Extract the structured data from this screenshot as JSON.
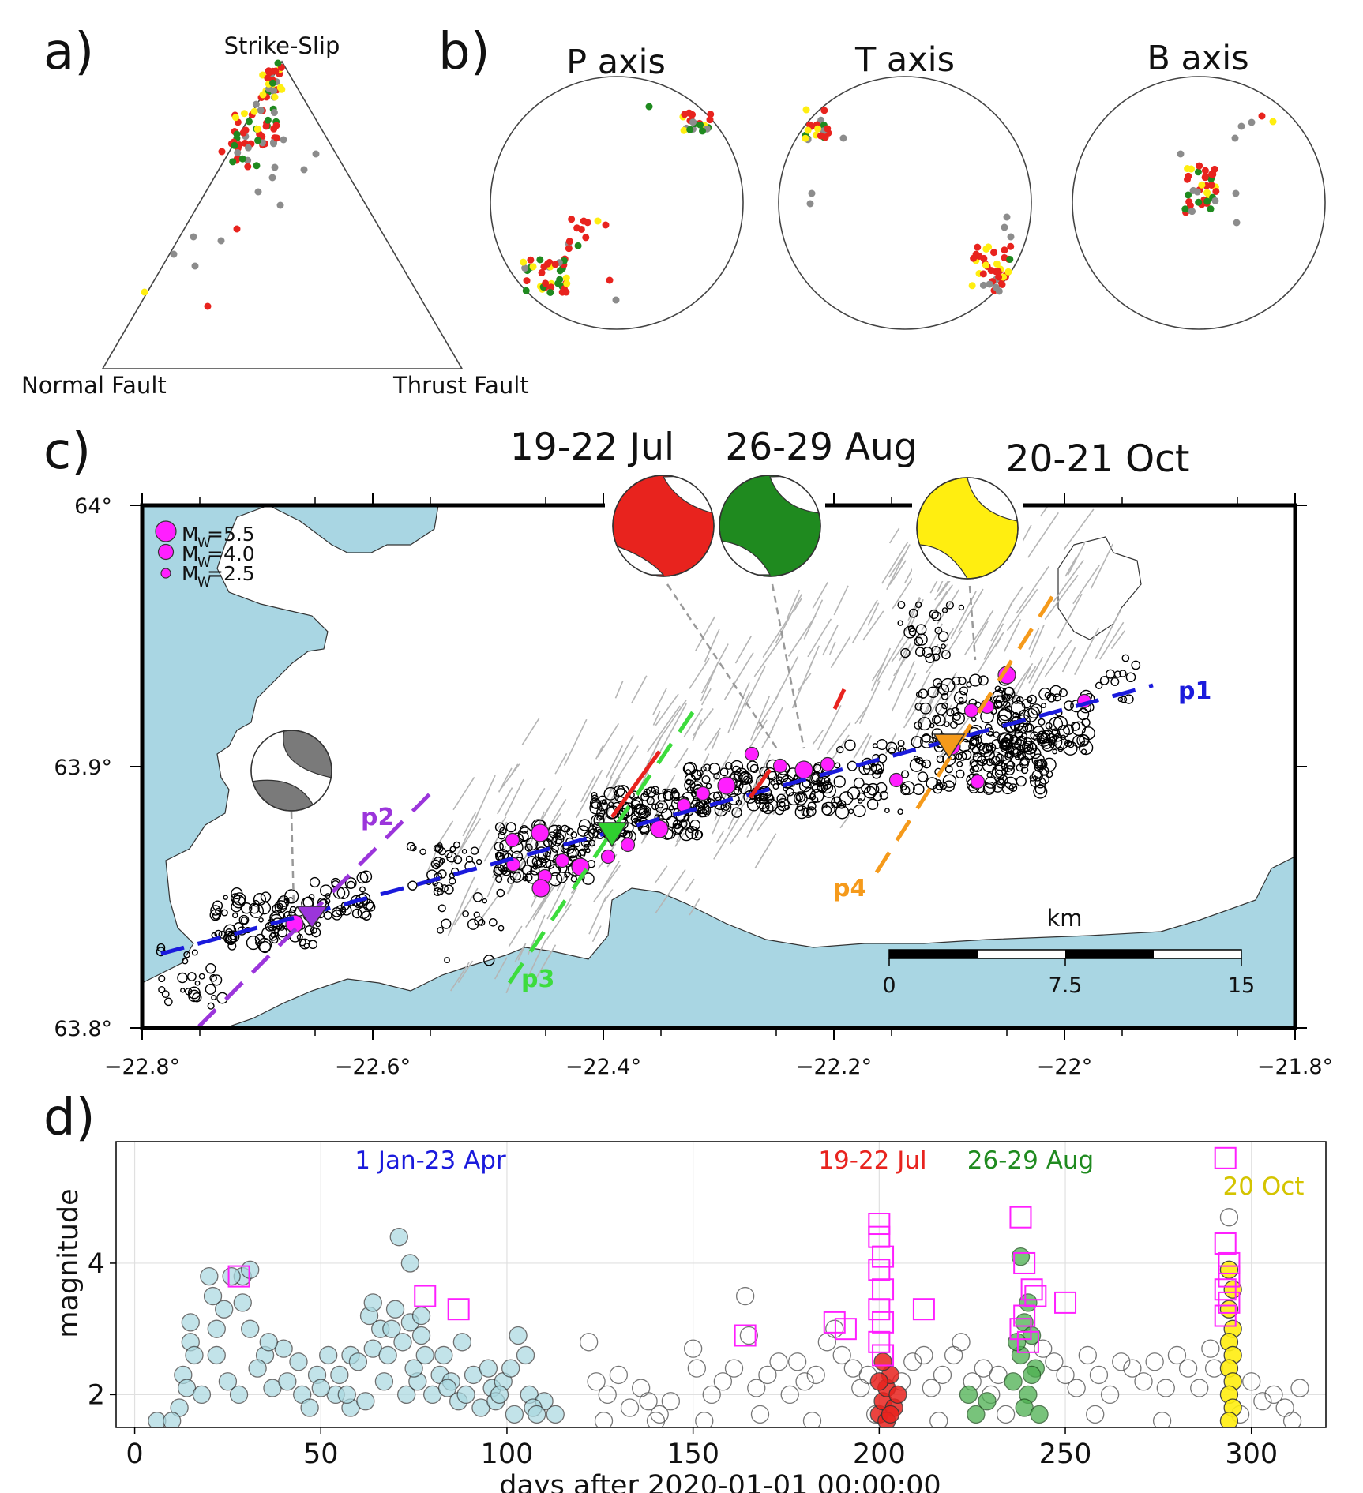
{
  "panel_labels": {
    "a": "a)",
    "b": "b)",
    "c": "c)",
    "d": "d)"
  },
  "colors": {
    "jul": "#e8231e",
    "aug": "#1f8a1f",
    "oct": "#ffee10",
    "other": "#8c8c8c",
    "early": "#a9d8e0",
    "p1": "#1a1adc",
    "p2": "#9b35db",
    "p3": "#3ddc3d",
    "p4": "#f59a1b",
    "sea": "#a9d6e3",
    "mw": "#ff1fff",
    "fault": "#b5b5b5"
  },
  "panel_a": {
    "type": "ternary",
    "vertex_labels": {
      "top": "Strike-Slip",
      "left": "Normal Fault",
      "right": "Thrust Fault"
    }
  },
  "panel_b": {
    "type": "stereonet",
    "titles": [
      "P axis",
      "T axis",
      "B axis"
    ]
  },
  "panel_c": {
    "type": "map",
    "event_titles": [
      "19-22 Jul",
      "26-29 Aug",
      "20-21 Oct"
    ],
    "legend": [
      "M",
      "W",
      "=5.5",
      "=4.0",
      "=2.5"
    ],
    "profiles": [
      "p1",
      "p2",
      "p3",
      "p4"
    ],
    "x_ticks": [
      "−22.8°",
      "−22.6°",
      "−22.4°",
      "−22.2°",
      "−22°",
      "−21.8°"
    ],
    "x_tick_values": [
      -22.8,
      -22.6,
      -22.4,
      -22.2,
      -22.0,
      -21.8
    ],
    "y_ticks": [
      "64°",
      "63.9°",
      "63.8°"
    ],
    "y_tick_values": [
      64.0,
      63.9,
      63.8
    ],
    "xlim": [
      -22.8,
      -21.8
    ],
    "ylim": [
      63.8,
      64.0
    ],
    "scalebar": {
      "unit": "km",
      "ticks": [
        "0",
        "7.5",
        "15"
      ]
    }
  },
  "chart_data": {
    "type": "scatter",
    "xlabel": "days after 2020-01-01 00:00:00",
    "ylabel": "magnitude",
    "xlim": [
      -5,
      320
    ],
    "ylim": [
      1.5,
      5.85
    ],
    "x_ticks": [
      0,
      50,
      100,
      150,
      200,
      250,
      300
    ],
    "y_ticks": [
      2,
      4
    ],
    "grid": true,
    "annotations": [
      "1 Jan-23 Apr",
      "19-22 Jul",
      "26-29 Aug",
      "20 Oct"
    ],
    "series": [
      {
        "name": "1 Jan-23 Apr",
        "marker": "circle",
        "points": [
          [
            20,
            3.8
          ],
          [
            21,
            3.5
          ],
          [
            24,
            3.3
          ],
          [
            22,
            3.0
          ],
          [
            29,
            3.4
          ],
          [
            29,
            3.8
          ],
          [
            31,
            3.9
          ],
          [
            26,
            3.8
          ],
          [
            15,
            3.1
          ],
          [
            15,
            2.8
          ],
          [
            16,
            2.6
          ],
          [
            13,
            2.3
          ],
          [
            14,
            2.1
          ],
          [
            22,
            2.6
          ],
          [
            31,
            3.0
          ],
          [
            35,
            2.6
          ],
          [
            40,
            2.7
          ],
          [
            44,
            2.5
          ],
          [
            49,
            2.3
          ],
          [
            52,
            2.6
          ],
          [
            55,
            2.3
          ],
          [
            58,
            2.6
          ],
          [
            60,
            2.5
          ],
          [
            63,
            3.2
          ],
          [
            64,
            3.4
          ],
          [
            66,
            3.0
          ],
          [
            64,
            2.7
          ],
          [
            69,
            3.0
          ],
          [
            70,
            3.3
          ],
          [
            71,
            4.4
          ],
          [
            72,
            2.8
          ],
          [
            74,
            3.1
          ],
          [
            77,
            3.2
          ],
          [
            77,
            2.9
          ],
          [
            78,
            2.6
          ],
          [
            74,
            4.0
          ],
          [
            82,
            2.3
          ],
          [
            83,
            2.6
          ],
          [
            88,
            2.8
          ],
          [
            91,
            2.3
          ],
          [
            95,
            2.4
          ],
          [
            96,
            2.1
          ],
          [
            99,
            2.2
          ],
          [
            101,
            2.4
          ],
          [
            103,
            2.9
          ],
          [
            105,
            2.6
          ],
          [
            106,
            2.0
          ],
          [
            110,
            1.9
          ],
          [
            113,
            1.7
          ],
          [
            12,
            1.8
          ],
          [
            6,
            1.6
          ],
          [
            10,
            1.6
          ],
          [
            18,
            2.0
          ],
          [
            25,
            2.2
          ],
          [
            28,
            2.0
          ],
          [
            33,
            2.4
          ],
          [
            37,
            2.1
          ],
          [
            45,
            2.0
          ],
          [
            47,
            1.8
          ],
          [
            54,
            2.0
          ],
          [
            58,
            1.8
          ],
          [
            62,
            1.9
          ],
          [
            67,
            2.2
          ],
          [
            73,
            2.0
          ],
          [
            76,
            2.2
          ],
          [
            80,
            2.0
          ],
          [
            85,
            2.2
          ],
          [
            87,
            1.9
          ],
          [
            93,
            1.8
          ],
          [
            97,
            1.9
          ],
          [
            102,
            1.7
          ],
          [
            107,
            1.8
          ],
          [
            36,
            2.8
          ],
          [
            41,
            2.2
          ],
          [
            50,
            2.1
          ],
          [
            57,
            2.0
          ],
          [
            68,
            2.6
          ],
          [
            75,
            2.4
          ],
          [
            84,
            2.1
          ],
          [
            89,
            2.0
          ],
          [
            98,
            2.0
          ],
          [
            108,
            1.7
          ]
        ]
      },
      {
        "name": "other",
        "marker": "circle",
        "points": [
          [
            122,
            2.8
          ],
          [
            124,
            2.2
          ],
          [
            127,
            2.0
          ],
          [
            130,
            2.3
          ],
          [
            133,
            1.8
          ],
          [
            136,
            2.1
          ],
          [
            138,
            1.9
          ],
          [
            141,
            1.7
          ],
          [
            144,
            1.9
          ],
          [
            150,
            2.7
          ],
          [
            151,
            2.4
          ],
          [
            155,
            2.0
          ],
          [
            158,
            2.2
          ],
          [
            161,
            2.4
          ],
          [
            164,
            3.5
          ],
          [
            165,
            2.9
          ],
          [
            167,
            2.1
          ],
          [
            170,
            2.3
          ],
          [
            173,
            2.5
          ],
          [
            176,
            2.0
          ],
          [
            178,
            2.5
          ],
          [
            180,
            2.2
          ],
          [
            183,
            2.3
          ],
          [
            186,
            2.8
          ],
          [
            188,
            3.0
          ],
          [
            190,
            2.6
          ],
          [
            193,
            2.4
          ],
          [
            195,
            2.1
          ],
          [
            197,
            2.3
          ],
          [
            206,
            2.2
          ],
          [
            209,
            2.5
          ],
          [
            212,
            2.6
          ],
          [
            214,
            2.1
          ],
          [
            217,
            2.3
          ],
          [
            220,
            2.6
          ],
          [
            222,
            2.8
          ],
          [
            225,
            2.2
          ],
          [
            228,
            2.4
          ],
          [
            230,
            2.0
          ],
          [
            232,
            2.3
          ],
          [
            244,
            2.7
          ],
          [
            247,
            2.5
          ],
          [
            250,
            2.3
          ],
          [
            253,
            2.1
          ],
          [
            256,
            2.6
          ],
          [
            259,
            2.3
          ],
          [
            262,
            2.0
          ],
          [
            265,
            2.5
          ],
          [
            268,
            2.4
          ],
          [
            271,
            2.2
          ],
          [
            274,
            2.5
          ],
          [
            277,
            2.1
          ],
          [
            280,
            2.6
          ],
          [
            283,
            2.4
          ],
          [
            286,
            2.1
          ],
          [
            289,
            2.7
          ],
          [
            290,
            2.4
          ],
          [
            294,
            4.7
          ],
          [
            300,
            2.2
          ],
          [
            303,
            1.9
          ],
          [
            306,
            2.0
          ],
          [
            309,
            1.8
          ],
          [
            313,
            2.1
          ],
          [
            126,
            1.6
          ],
          [
            140,
            1.6
          ],
          [
            153,
            1.6
          ],
          [
            168,
            1.7
          ],
          [
            182,
            1.6
          ],
          [
            199,
            1.7
          ],
          [
            216,
            1.6
          ],
          [
            234,
            1.7
          ],
          [
            258,
            1.7
          ],
          [
            276,
            1.6
          ],
          [
            297,
            1.7
          ],
          [
            311,
            1.6
          ]
        ]
      },
      {
        "name": "19-22 Jul",
        "marker": "circle",
        "points": [
          [
            200,
            1.7
          ],
          [
            201,
            1.9
          ],
          [
            202,
            2.1
          ],
          [
            203,
            2.3
          ],
          [
            201,
            2.5
          ],
          [
            204,
            1.8
          ],
          [
            202,
            1.6
          ],
          [
            205,
            2.0
          ],
          [
            200,
            2.2
          ],
          [
            203,
            1.7
          ]
        ]
      },
      {
        "name": "26-29 Aug",
        "marker": "circle",
        "points": [
          [
            224,
            2.0
          ],
          [
            226,
            1.7
          ],
          [
            229,
            1.9
          ],
          [
            236,
            2.2
          ],
          [
            238,
            2.6
          ],
          [
            239,
            3.1
          ],
          [
            240,
            3.4
          ],
          [
            238,
            4.1
          ],
          [
            241,
            2.9
          ],
          [
            242,
            2.4
          ],
          [
            237,
            2.8
          ],
          [
            240,
            2.0
          ],
          [
            239,
            1.8
          ],
          [
            243,
            1.7
          ],
          [
            241,
            2.3
          ]
        ]
      },
      {
        "name": "20 Oct",
        "marker": "circle",
        "points": [
          [
            294,
            3.9
          ],
          [
            295,
            3.6
          ],
          [
            294,
            3.3
          ],
          [
            295,
            3.0
          ],
          [
            294,
            2.8
          ],
          [
            295,
            2.6
          ],
          [
            294,
            2.4
          ],
          [
            295,
            2.2
          ],
          [
            294,
            2.0
          ],
          [
            295,
            1.8
          ],
          [
            294,
            1.6
          ]
        ]
      },
      {
        "name": "Mw",
        "marker": "square",
        "points": [
          [
            28,
            3.8
          ],
          [
            78,
            3.5
          ],
          [
            87,
            3.3
          ],
          [
            164,
            2.9
          ],
          [
            188,
            3.1
          ],
          [
            191,
            3.0
          ],
          [
            200,
            4.6
          ],
          [
            200,
            4.4
          ],
          [
            201,
            4.1
          ],
          [
            200,
            3.9
          ],
          [
            201,
            3.6
          ],
          [
            200,
            3.3
          ],
          [
            201,
            3.1
          ],
          [
            200,
            2.8
          ],
          [
            201,
            2.6
          ],
          [
            212,
            3.3
          ],
          [
            238,
            4.7
          ],
          [
            239,
            4.0
          ],
          [
            241,
            3.6
          ],
          [
            242,
            3.5
          ],
          [
            239,
            3.2
          ],
          [
            238,
            3.0
          ],
          [
            240,
            2.8
          ],
          [
            250,
            3.4
          ],
          [
            293,
            5.6
          ],
          [
            293,
            4.3
          ],
          [
            294,
            4.0
          ],
          [
            294,
            3.8
          ],
          [
            293,
            3.6
          ],
          [
            294,
            3.4
          ],
          [
            293,
            3.2
          ]
        ]
      }
    ]
  }
}
